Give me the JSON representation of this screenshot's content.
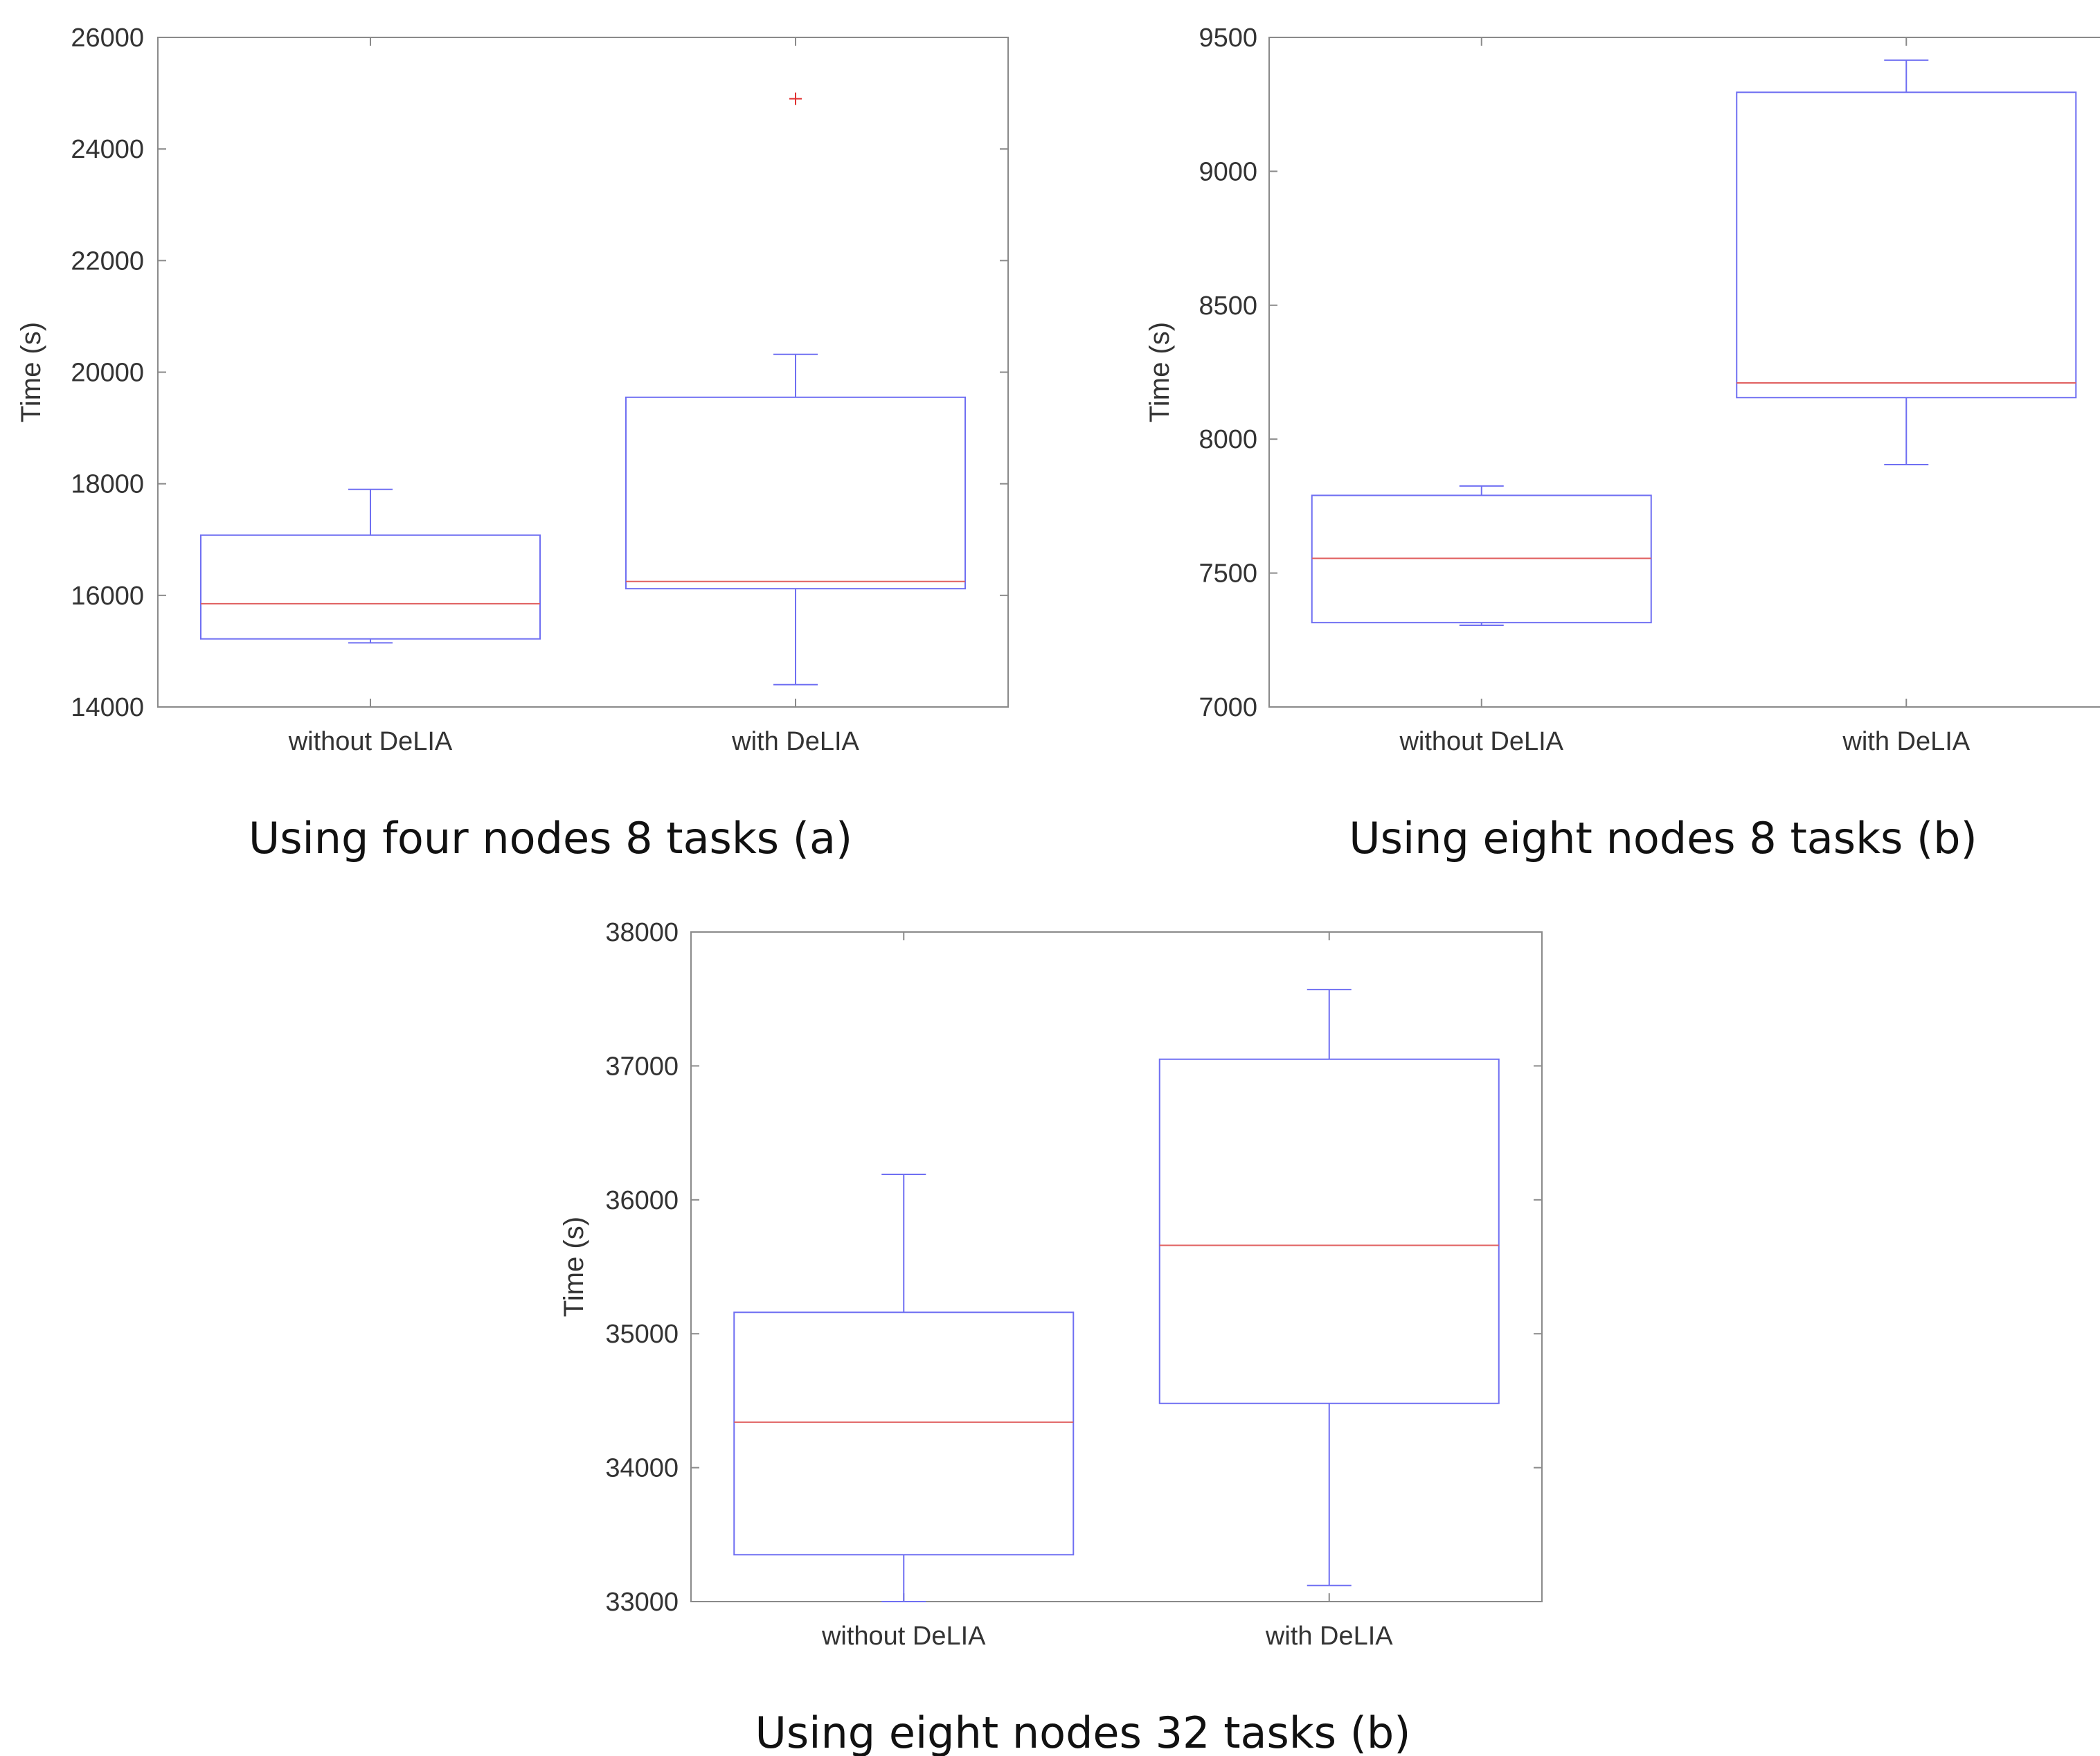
{
  "chart_data": [
    {
      "type": "boxplot",
      "caption": "Using four nodes 8 tasks (a)",
      "ylabel": "Time (s)",
      "ylim": [
        14000,
        26000
      ],
      "yticks": [
        "14000",
        "16000",
        "18000",
        "20000",
        "22000",
        "24000",
        "26000"
      ],
      "categories": [
        "without DeLIA",
        "with DeLIA"
      ],
      "boxes": [
        {
          "category": "without DeLIA",
          "whisker_low": 15150,
          "q1": 15220,
          "median": 15850,
          "q3": 17080,
          "whisker_high": 17900,
          "outliers": []
        },
        {
          "category": "with DeLIA",
          "whisker_low": 14400,
          "q1": 16120,
          "median": 16250,
          "q3": 19550,
          "whisker_high": 20320,
          "outliers": [
            24900
          ]
        }
      ],
      "colors": {
        "box": "#6f6ff2",
        "median": "#e06060",
        "outlier": "#e03030"
      }
    },
    {
      "type": "boxplot",
      "caption": "Using eight nodes 8 tasks (b)",
      "ylabel": "Time (s)",
      "ylim": [
        7000,
        9500
      ],
      "yticks": [
        "7000",
        "7500",
        "8000",
        "8500",
        "9000",
        "9500"
      ],
      "categories": [
        "without DeLIA",
        "with DeLIA"
      ],
      "boxes": [
        {
          "category": "without DeLIA",
          "whisker_low": 7305,
          "q1": 7315,
          "median": 7555,
          "q3": 7790,
          "whisker_high": 7825,
          "outliers": []
        },
        {
          "category": "with DeLIA",
          "whisker_low": 7905,
          "q1": 8155,
          "median": 8210,
          "q3": 9295,
          "whisker_high": 9415,
          "outliers": []
        }
      ],
      "colors": {
        "box": "#6f6ff2",
        "median": "#e06060",
        "outlier": "#e03030"
      }
    },
    {
      "type": "boxplot",
      "caption": "Using eight nodes 32 tasks (b)",
      "ylabel": "Time (s)",
      "ylim": [
        33000,
        38000
      ],
      "yticks": [
        "33000",
        "34000",
        "35000",
        "36000",
        "37000",
        "38000"
      ],
      "categories": [
        "without DeLIA",
        "with DeLIA"
      ],
      "boxes": [
        {
          "category": "without DeLIA",
          "whisker_low": 33000,
          "q1": 33350,
          "median": 34340,
          "q3": 35160,
          "whisker_high": 36190,
          "outliers": []
        },
        {
          "category": "with DeLIA",
          "whisker_low": 33120,
          "q1": 34480,
          "median": 35660,
          "q3": 37050,
          "whisker_high": 37570,
          "outliers": []
        }
      ],
      "colors": {
        "box": "#6f6ff2",
        "median": "#e06060",
        "outlier": "#e03030"
      }
    }
  ]
}
